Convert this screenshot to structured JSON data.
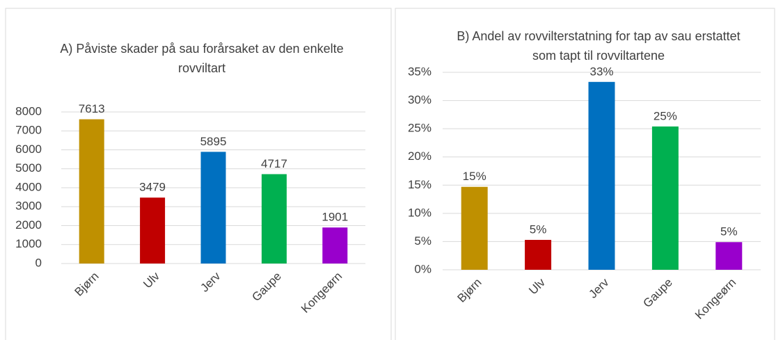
{
  "chart_data": [
    {
      "type": "bar",
      "title": "A) Påviste skader på sau forårsaket av den enkelte rovviltart",
      "categories": [
        "Bjørn",
        "Ulv",
        "Jerv",
        "Gaupe",
        "Kongeørn"
      ],
      "values": [
        7613,
        3479,
        5895,
        4717,
        1901
      ],
      "colors": [
        "#bf9000",
        "#c00000",
        "#0070c0",
        "#00b050",
        "#9900cc"
      ],
      "ylim": [
        0,
        8000
      ],
      "yticks": [
        0,
        1000,
        2000,
        3000,
        4000,
        5000,
        6000,
        7000,
        8000
      ],
      "grid": true
    },
    {
      "type": "bar",
      "title": "B) Andel av rovvilterstatning for tap av sau erstattet som tapt til rovviltartene",
      "categories": [
        "Bjørn",
        "Ulv",
        "Jerv",
        "Gaupe",
        "Kongeørn"
      ],
      "values": [
        14.7,
        5.3,
        33.3,
        25.4,
        4.9
      ],
      "value_labels": [
        "15%",
        "5%",
        "33%",
        "25%",
        "5%"
      ],
      "colors": [
        "#bf9000",
        "#c00000",
        "#0070c0",
        "#00b050",
        "#9900cc"
      ],
      "ylim": [
        0,
        35
      ],
      "yticks": [
        {
          "value": 0,
          "label": "0%"
        },
        {
          "value": 5,
          "label": "5%"
        },
        {
          "value": 10,
          "label": "10%"
        },
        {
          "value": 15,
          "label": "15%"
        },
        {
          "value": 20,
          "label": "20%"
        },
        {
          "value": 25,
          "label": "25%"
        },
        {
          "value": 30,
          "label": "30%"
        },
        {
          "value": 35,
          "label": "35%"
        }
      ],
      "grid": true
    }
  ]
}
